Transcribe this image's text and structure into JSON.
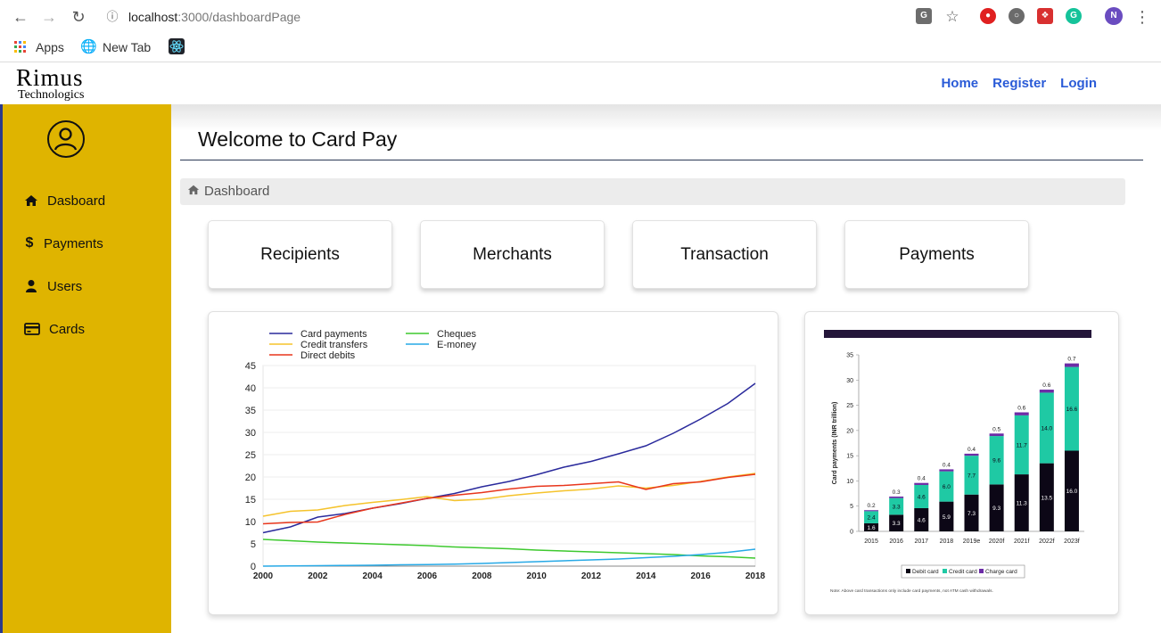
{
  "browser": {
    "url_host": "localhost",
    "url_path": ":3000/dashboardPage",
    "bookmarks": [
      "Apps",
      "New Tab"
    ],
    "profile_initial": "N"
  },
  "header": {
    "logo_line1": "Rimus",
    "logo_line2": "Technologics",
    "nav": [
      "Home",
      "Register",
      "Login"
    ]
  },
  "sidebar": {
    "items": [
      {
        "label": "Dasboard",
        "icon": "home-icon"
      },
      {
        "label": "Payments",
        "icon": "dollar-icon"
      },
      {
        "label": "Users",
        "icon": "user-icon"
      },
      {
        "label": "Cards",
        "icon": "credit-card-icon"
      }
    ]
  },
  "main": {
    "title": "Welcome to Card Pay",
    "breadcrumb": "Dashboard",
    "cards": [
      "Recipients",
      "Merchants",
      "Transaction",
      "Payments"
    ]
  },
  "chart_data": [
    {
      "type": "line",
      "title": "",
      "xlabel": "",
      "ylabel": "",
      "x": [
        2000,
        2001,
        2002,
        2003,
        2004,
        2005,
        2006,
        2007,
        2008,
        2009,
        2010,
        2011,
        2012,
        2013,
        2014,
        2015,
        2016,
        2017,
        2018
      ],
      "xticks": [
        2000,
        2002,
        2004,
        2006,
        2008,
        2010,
        2012,
        2014,
        2016,
        2018
      ],
      "yticks": [
        0,
        5,
        10,
        15,
        20,
        25,
        30,
        35,
        40,
        45
      ],
      "ylim": [
        0,
        45
      ],
      "xlim": [
        2000,
        2018
      ],
      "legend_position": "top",
      "series": [
        {
          "name": "Card payments",
          "color": "#2a2a9c",
          "values": [
            7.5,
            8.8,
            11,
            11.8,
            13,
            14,
            15.2,
            16.3,
            17.8,
            19,
            20.5,
            22.2,
            23.5,
            25.2,
            27,
            29.8,
            33,
            36.5,
            41
          ]
        },
        {
          "name": "Credit transfers",
          "color": "#f5c32c",
          "values": [
            11.2,
            12.3,
            12.6,
            13.6,
            14.3,
            14.9,
            15.6,
            14.7,
            15,
            15.8,
            16.4,
            16.9,
            17.3,
            18,
            17.5,
            18.1,
            19,
            20,
            20.8
          ]
        },
        {
          "name": "Direct debits",
          "color": "#e8361c",
          "values": [
            9.5,
            9.8,
            9.9,
            11.6,
            13,
            14.1,
            15.2,
            15.9,
            16.5,
            17.3,
            17.9,
            18.1,
            18.5,
            18.9,
            17.2,
            18.5,
            18.9,
            19.9,
            20.6
          ]
        },
        {
          "name": "Cheques",
          "color": "#3ec92f",
          "values": [
            6,
            5.7,
            5.4,
            5.2,
            5,
            4.8,
            4.6,
            4.3,
            4.1,
            3.9,
            3.6,
            3.4,
            3.2,
            3,
            2.8,
            2.6,
            2.3,
            2.1,
            1.8
          ]
        },
        {
          "name": "E-money",
          "color": "#27a9e6",
          "values": [
            0,
            0.05,
            0.1,
            0.15,
            0.2,
            0.3,
            0.35,
            0.45,
            0.6,
            0.8,
            1,
            1.2,
            1.4,
            1.6,
            1.9,
            2.2,
            2.6,
            3.1,
            3.8
          ]
        }
      ]
    },
    {
      "type": "bar",
      "stacked": true,
      "title": "",
      "ylabel": "Card payments (INR trillion)",
      "categories": [
        "2015",
        "2016",
        "2017",
        "2018",
        "2019e",
        "2020f",
        "2021f",
        "2022f",
        "2023f"
      ],
      "yticks": [
        0,
        5,
        10,
        15,
        20,
        25,
        30,
        35
      ],
      "ylim": [
        0,
        35
      ],
      "legend_position": "bottom",
      "note": "Note: Above card transactions only include card payments, not ATM cash withdrawals.",
      "series": [
        {
          "name": "Debit card",
          "color": "#0c0716",
          "values": [
            1.6,
            3.3,
            4.6,
            5.9,
            7.3,
            9.3,
            11.3,
            13.5,
            16.0
          ]
        },
        {
          "name": "Credit card",
          "color": "#1fc9a4",
          "values": [
            2.4,
            3.3,
            4.6,
            6.0,
            7.7,
            9.6,
            11.7,
            14.0,
            16.6
          ]
        },
        {
          "name": "Charge card",
          "color": "#6c2ba6",
          "values": [
            0.2,
            0.3,
            0.4,
            0.4,
            0.4,
            0.5,
            0.6,
            0.6,
            0.7
          ]
        }
      ]
    }
  ]
}
